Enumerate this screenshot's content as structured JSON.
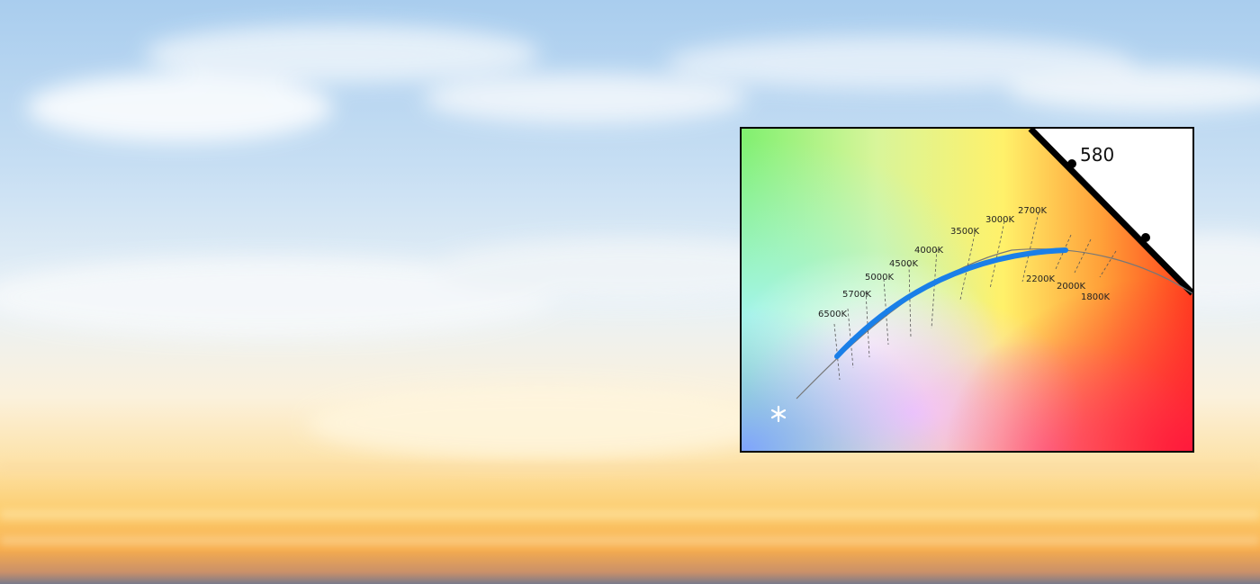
{
  "diagram": {
    "wavelength_label": "580",
    "cct_labels_upper": [
      "6500K",
      "5700K",
      "5000K",
      "4500K",
      "4000K",
      "3500K",
      "3000K",
      "2700K"
    ],
    "cct_labels_lower": [
      "2200K",
      "2000K",
      "1800K"
    ],
    "highlight_color": "#1a7fe8",
    "white_point_icon": "star-icon"
  }
}
